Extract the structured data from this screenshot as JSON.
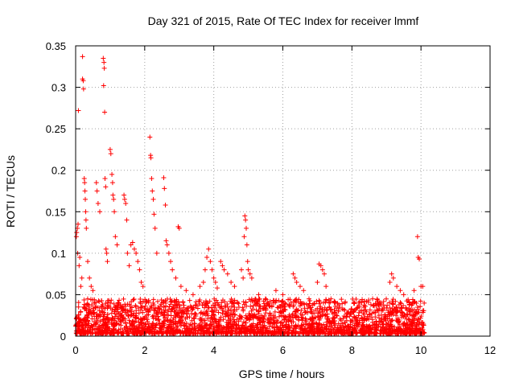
{
  "chart_data": {
    "type": "scatter",
    "title": "Day 321 of 2015, Rate Of TEC Index for receiver lmmf",
    "xlabel": "GPS time / hours",
    "ylabel": "ROTI / TECUs",
    "xlim": [
      0,
      12
    ],
    "ylim": [
      0,
      0.35
    ],
    "xticks": [
      0,
      2,
      4,
      6,
      8,
      10,
      12
    ],
    "xtick_labels": [
      "0",
      "2",
      "4",
      "6",
      "8",
      "10",
      "12"
    ],
    "yticks": [
      0,
      0.05,
      0.1,
      0.15,
      0.2,
      0.25,
      0.3,
      0.35
    ],
    "ytick_labels": [
      "0",
      "0.05",
      "0.1",
      "0.15",
      "0.2",
      "0.25",
      "0.3",
      "0.35"
    ],
    "grid": true,
    "marker": "+",
    "color": "#ff0000",
    "baseline_band": {
      "x_range": [
        0,
        10.1
      ],
      "y_range": [
        0.003,
        0.045
      ],
      "description": "dense cluster of low ROTI values across the whole interval"
    },
    "series": [
      {
        "name": "ROTI",
        "points": [
          [
            0.02,
            0.12
          ],
          [
            0.03,
            0.125
          ],
          [
            0.05,
            0.13
          ],
          [
            0.06,
            0.1
          ],
          [
            0.07,
            0.135
          ],
          [
            0.08,
            0.272
          ],
          [
            0.1,
            0.085
          ],
          [
            0.12,
            0.095
          ],
          [
            0.15,
            0.06
          ],
          [
            0.18,
            0.07
          ],
          [
            0.2,
            0.31
          ],
          [
            0.22,
            0.308
          ],
          [
            0.23,
            0.298
          ],
          [
            0.2,
            0.337
          ],
          [
            0.25,
            0.19
          ],
          [
            0.26,
            0.185
          ],
          [
            0.27,
            0.175
          ],
          [
            0.28,
            0.165
          ],
          [
            0.29,
            0.15
          ],
          [
            0.3,
            0.14
          ],
          [
            0.31,
            0.13
          ],
          [
            0.35,
            0.09
          ],
          [
            0.4,
            0.07
          ],
          [
            0.45,
            0.06
          ],
          [
            0.5,
            0.055
          ],
          [
            0.6,
            0.185
          ],
          [
            0.62,
            0.175
          ],
          [
            0.65,
            0.16
          ],
          [
            0.7,
            0.15
          ],
          [
            0.8,
            0.335
          ],
          [
            0.82,
            0.33
          ],
          [
            0.83,
            0.323
          ],
          [
            0.81,
            0.302
          ],
          [
            0.84,
            0.27
          ],
          [
            0.85,
            0.19
          ],
          [
            0.87,
            0.18
          ],
          [
            0.88,
            0.105
          ],
          [
            0.9,
            0.1
          ],
          [
            0.92,
            0.09
          ],
          [
            1.0,
            0.225
          ],
          [
            1.02,
            0.22
          ],
          [
            1.05,
            0.195
          ],
          [
            1.07,
            0.185
          ],
          [
            1.08,
            0.17
          ],
          [
            1.1,
            0.165
          ],
          [
            1.12,
            0.15
          ],
          [
            1.15,
            0.12
          ],
          [
            1.2,
            0.11
          ],
          [
            1.4,
            0.17
          ],
          [
            1.42,
            0.165
          ],
          [
            1.45,
            0.16
          ],
          [
            1.48,
            0.14
          ],
          [
            1.5,
            0.1
          ],
          [
            1.55,
            0.085
          ],
          [
            1.6,
            0.11
          ],
          [
            1.65,
            0.113
          ],
          [
            1.7,
            0.105
          ],
          [
            1.75,
            0.1
          ],
          [
            1.8,
            0.09
          ],
          [
            1.85,
            0.08
          ],
          [
            1.9,
            0.065
          ],
          [
            1.95,
            0.06
          ],
          [
            2.15,
            0.24
          ],
          [
            2.17,
            0.218
          ],
          [
            2.18,
            0.215
          ],
          [
            2.2,
            0.19
          ],
          [
            2.22,
            0.175
          ],
          [
            2.25,
            0.165
          ],
          [
            2.27,
            0.147
          ],
          [
            2.3,
            0.13
          ],
          [
            2.35,
            0.1
          ],
          [
            2.55,
            0.191
          ],
          [
            2.57,
            0.178
          ],
          [
            2.6,
            0.158
          ],
          [
            2.62,
            0.115
          ],
          [
            2.65,
            0.11
          ],
          [
            2.7,
            0.1
          ],
          [
            2.75,
            0.09
          ],
          [
            2.8,
            0.08
          ],
          [
            2.9,
            0.07
          ],
          [
            2.97,
            0.132
          ],
          [
            3.0,
            0.13
          ],
          [
            3.05,
            0.06
          ],
          [
            3.2,
            0.055
          ],
          [
            3.4,
            0.05
          ],
          [
            3.6,
            0.06
          ],
          [
            3.7,
            0.065
          ],
          [
            3.75,
            0.08
          ],
          [
            3.8,
            0.095
          ],
          [
            3.85,
            0.105
          ],
          [
            3.9,
            0.09
          ],
          [
            3.95,
            0.08
          ],
          [
            4.0,
            0.07
          ],
          [
            4.05,
            0.065
          ],
          [
            4.1,
            0.058
          ],
          [
            4.2,
            0.09
          ],
          [
            4.25,
            0.085
          ],
          [
            4.3,
            0.08
          ],
          [
            4.4,
            0.075
          ],
          [
            4.5,
            0.065
          ],
          [
            4.6,
            0.06
          ],
          [
            4.8,
            0.08
          ],
          [
            4.85,
            0.07
          ],
          [
            4.88,
            0.12
          ],
          [
            4.9,
            0.145
          ],
          [
            4.92,
            0.14
          ],
          [
            4.94,
            0.13
          ],
          [
            4.96,
            0.11
          ],
          [
            4.98,
            0.09
          ],
          [
            5.0,
            0.08
          ],
          [
            5.05,
            0.075
          ],
          [
            5.1,
            0.07
          ],
          [
            5.3,
            0.05
          ],
          [
            5.5,
            0.045
          ],
          [
            5.8,
            0.055
          ],
          [
            6.0,
            0.05
          ],
          [
            6.3,
            0.075
          ],
          [
            6.35,
            0.07
          ],
          [
            6.4,
            0.065
          ],
          [
            6.5,
            0.06
          ],
          [
            6.6,
            0.055
          ],
          [
            7.0,
            0.065
          ],
          [
            7.05,
            0.087
          ],
          [
            7.1,
            0.085
          ],
          [
            7.15,
            0.08
          ],
          [
            7.2,
            0.075
          ],
          [
            7.25,
            0.06
          ],
          [
            7.5,
            0.04
          ],
          [
            7.8,
            0.04
          ],
          [
            8.2,
            0.04
          ],
          [
            8.6,
            0.045
          ],
          [
            8.8,
            0.04
          ],
          [
            9.1,
            0.065
          ],
          [
            9.15,
            0.075
          ],
          [
            9.2,
            0.07
          ],
          [
            9.3,
            0.06
          ],
          [
            9.4,
            0.055
          ],
          [
            9.5,
            0.05
          ],
          [
            9.8,
            0.055
          ],
          [
            9.9,
            0.12
          ],
          [
            9.92,
            0.095
          ],
          [
            9.95,
            0.093
          ],
          [
            10.0,
            0.06
          ],
          [
            10.05,
            0.06
          ]
        ]
      }
    ]
  }
}
